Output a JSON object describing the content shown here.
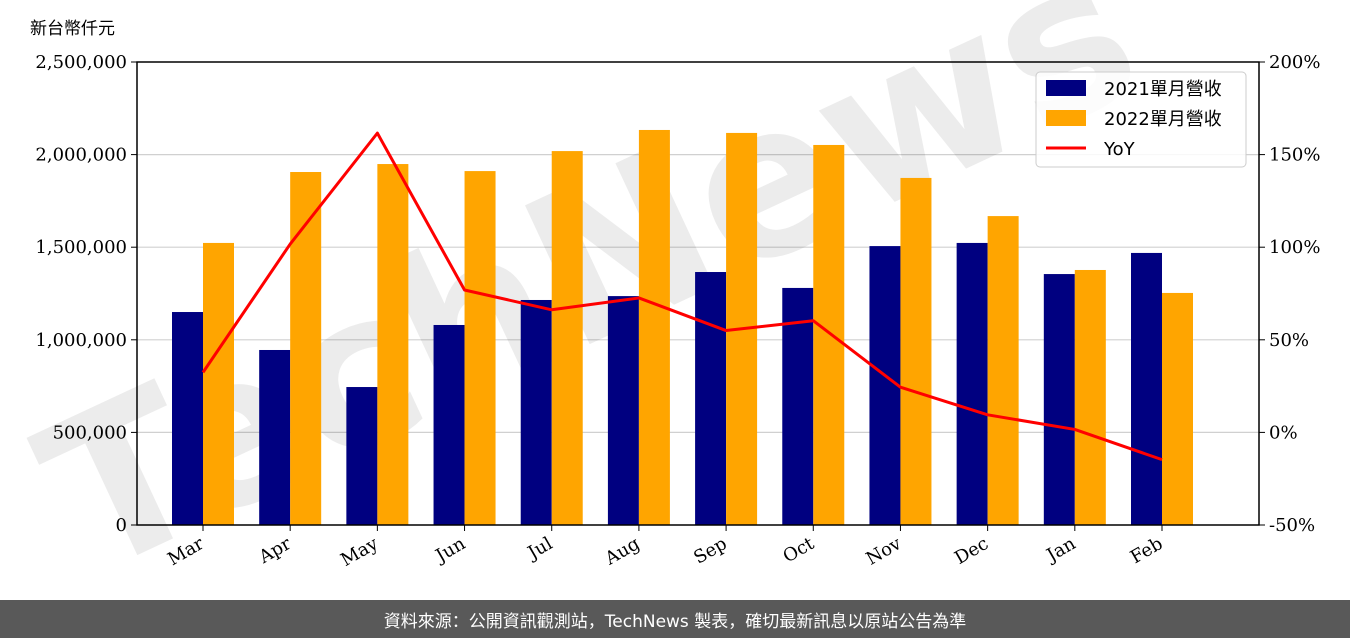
{
  "chart_data": {
    "type": "bar",
    "ylabel": "新台幣仟元",
    "categories": [
      "Mar",
      "Apr",
      "May",
      "Jun",
      "Jul",
      "Aug",
      "Sep",
      "Oct",
      "Nov",
      "Dec",
      "Jan",
      "Feb"
    ],
    "series": [
      {
        "name": "2021單月營收",
        "type": "bar",
        "axis": "left",
        "color": "#000080",
        "values": [
          1150000,
          945000,
          745000,
          1080000,
          1215000,
          1236000,
          1366000,
          1280000,
          1506000,
          1523000,
          1355000,
          1469000
        ]
      },
      {
        "name": "2022單月營收",
        "type": "bar",
        "axis": "left",
        "color": "#FFA500",
        "values": [
          1523000,
          1906000,
          1949000,
          1911000,
          2019000,
          2133000,
          2117000,
          2052000,
          1874000,
          1668000,
          1377000,
          1253000
        ]
      },
      {
        "name": "YoY",
        "type": "line",
        "axis": "right",
        "color": "#FF0000",
        "values": [
          32.4,
          101.7,
          161.6,
          76.9,
          66.2,
          72.6,
          55.0,
          60.3,
          24.4,
          9.5,
          1.6,
          -14.7
        ]
      }
    ],
    "ylim": [
      0,
      2500000
    ],
    "yticks": [
      "0",
      "500,000",
      "1,000,000",
      "1,500,000",
      "2,000,000",
      "2,500,000"
    ],
    "y2lim": [
      -50,
      200
    ],
    "y2ticks": [
      "-50%",
      "0%",
      "50%",
      "100%",
      "150%",
      "200%"
    ],
    "grid": true,
    "legend": "top-right"
  },
  "watermark": "TechNews",
  "footer": {
    "text": "資料來源：公開資訊觀測站，TechNews 製表，確切最新訊息以原站公告為準"
  }
}
